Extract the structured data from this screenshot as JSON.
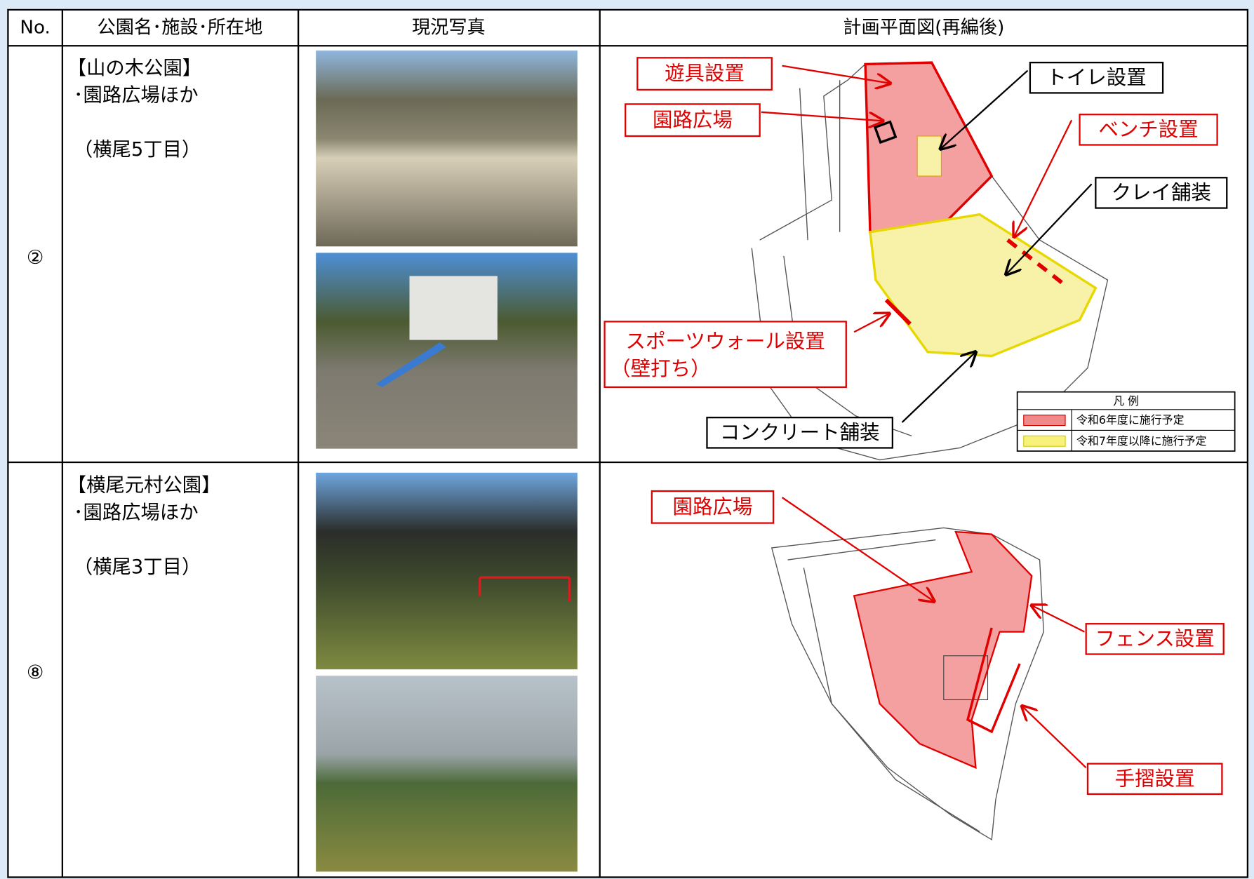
{
  "table": {
    "header": [
      "No.",
      "公園名･施設･所在地",
      "現況写真",
      "計画平面図(再編後)"
    ],
    "rows": [
      {
        "no": "②",
        "name": "【山の木公園】",
        "facility": "･園路広場ほか",
        "location": "（横尾5丁目）",
        "plan_labels": [
          "遊具設置",
          "園路広場",
          "トイレ設置",
          "ベンチ設置",
          "クレイ舗装",
          "スポーツウォール設置",
          "（壁打ち）",
          "コンクリート舗装"
        ],
        "legend": {
          "title": "凡 例",
          "items": [
            "令和6年度に施行予定",
            "令和7年度以降に施行予定"
          ]
        }
      },
      {
        "no": "⑧",
        "name": "【横尾元村公園】",
        "facility": "･園路広場ほか",
        "location": "（横尾3丁目）",
        "plan_labels": [
          "園路広場",
          "フェンス設置",
          "手摺設置"
        ]
      }
    ]
  }
}
